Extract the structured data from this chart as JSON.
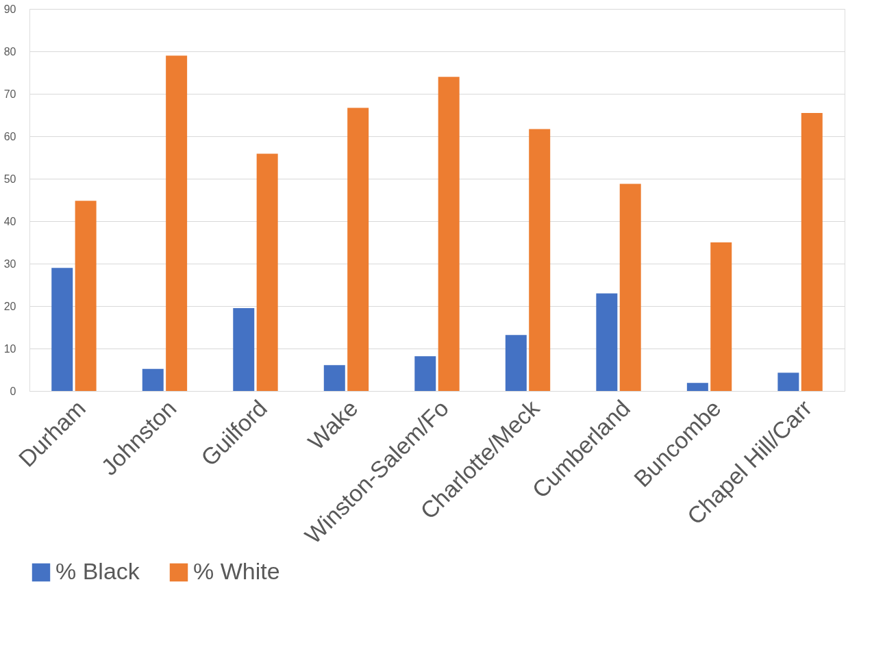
{
  "chart_data": {
    "type": "bar",
    "categories": [
      "Durham",
      "Johnston",
      "Guilford",
      "Wake",
      "Winston-Salem/Fo",
      "Charlotte/Meck",
      "Cumberland",
      "Buncombe",
      "Chapel Hill/Carr"
    ],
    "series": [
      {
        "name": "% Black",
        "color": "#4472c4",
        "values": [
          29.0,
          5.2,
          19.5,
          6.1,
          8.2,
          13.2,
          23.0,
          1.9,
          4.3
        ]
      },
      {
        "name": "% White",
        "color": "#ed7d31",
        "values": [
          44.8,
          79.0,
          55.9,
          66.7,
          74.0,
          61.7,
          48.8,
          35.0,
          65.5
        ]
      }
    ],
    "ylim": [
      0,
      90
    ],
    "yticks": [
      0,
      10,
      20,
      30,
      40,
      50,
      60,
      70,
      80,
      90
    ],
    "grid": "y",
    "legend": "bottom"
  }
}
